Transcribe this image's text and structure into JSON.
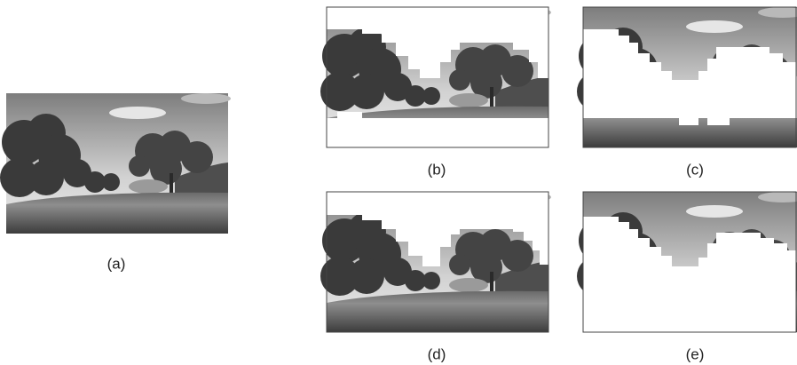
{
  "panels": [
    {
      "caption": "(a)"
    },
    {
      "caption": "(b)"
    },
    {
      "caption": "(c)"
    },
    {
      "caption": "(d)"
    },
    {
      "caption": "(e)"
    }
  ]
}
